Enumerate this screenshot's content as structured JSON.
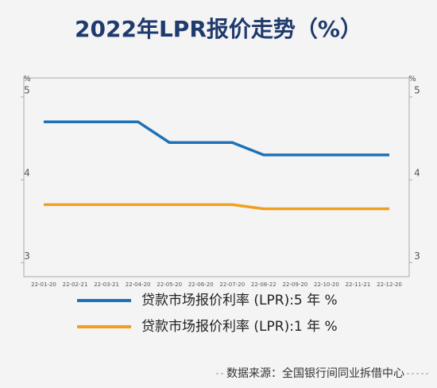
{
  "chart_data": {
    "type": "line",
    "title": "2022年LPR报价走势（%）",
    "y_unit": "%",
    "categories": [
      "22-01-20",
      "22-02-21",
      "22-03-21",
      "22-04-20",
      "22-05-20",
      "22-06-20",
      "22-07-20",
      "22-08-22",
      "22-09-20",
      "22-10-20",
      "22-11-21",
      "22-12-20"
    ],
    "series": [
      {
        "name": "贷款市场报价利率 (LPR):5 年 %",
        "color": "#1f72b8",
        "values": [
          4.7,
          4.7,
          4.7,
          4.7,
          4.45,
          4.45,
          4.45,
          4.3,
          4.3,
          4.3,
          4.3,
          4.3
        ]
      },
      {
        "name": "贷款市场报价利率 (LPR):1 年 %",
        "color": "#f0a020",
        "values": [
          3.7,
          3.7,
          3.7,
          3.7,
          3.7,
          3.7,
          3.7,
          3.65,
          3.65,
          3.65,
          3.65,
          3.65
        ]
      }
    ],
    "ylim": [
      2.83,
      5.23
    ],
    "yticks": [
      3,
      4,
      5
    ],
    "source": "数据来源：全国银行间同业拆借中心"
  }
}
